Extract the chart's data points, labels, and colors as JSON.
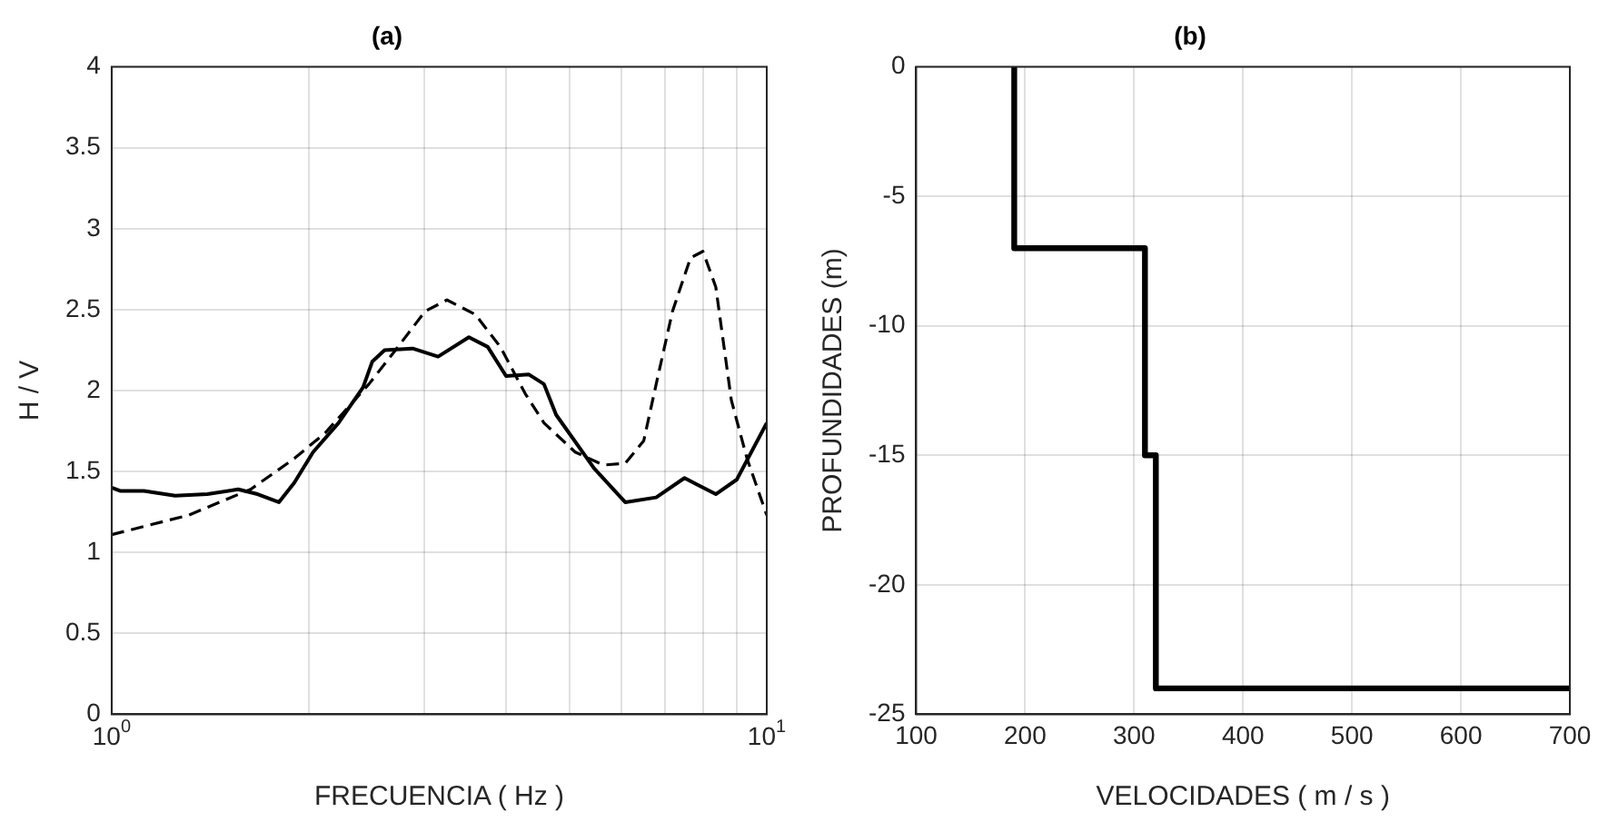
{
  "chart_data": [
    {
      "type": "line",
      "title": "(a)",
      "xlabel": "FRECUENCIA ( Hz )",
      "ylabel": "H / V",
      "log": "x",
      "grid": true,
      "marker": "none",
      "xlim": [
        1,
        10
      ],
      "xticks": [
        {
          "value": 1,
          "label": "10$^{0}$"
        },
        {
          "value": 2,
          "label": null
        },
        {
          "value": 3,
          "label": null
        },
        {
          "value": 4,
          "label": null
        },
        {
          "value": 5,
          "label": null
        },
        {
          "value": 6,
          "label": null
        },
        {
          "value": 7,
          "label": null
        },
        {
          "value": 8,
          "label": null
        },
        {
          "value": 9,
          "label": null
        },
        {
          "value": 10,
          "label": "10$^{1}$"
        }
      ],
      "ylim": [
        0,
        4
      ],
      "yticks": [
        0,
        0.5,
        1,
        1.5,
        2,
        2.5,
        3,
        3.5,
        4
      ],
      "series": [
        {
          "color": "#000000",
          "line_style": "solid",
          "x": [
            1,
            1.03,
            1.12,
            1.25,
            1.4,
            1.56,
            1.67,
            1.8,
            1.9,
            2.03,
            2.22,
            2.42,
            2.5,
            2.61,
            2.88,
            3.15,
            3.51,
            3.75,
            4.0,
            4.33,
            4.57,
            4.77,
            5.45,
            6.08,
            6.78,
            7.49,
            8.36,
            9.0,
            10
          ],
          "values": [
            1.4,
            1.38,
            1.38,
            1.35,
            1.36,
            1.39,
            1.36,
            1.31,
            1.43,
            1.62,
            1.8,
            2.02,
            2.18,
            2.25,
            2.26,
            2.21,
            2.33,
            2.27,
            2.09,
            2.1,
            2.04,
            1.85,
            1.52,
            1.31,
            1.34,
            1.46,
            1.36,
            1.45,
            1.8
          ]
        },
        {
          "color": "#000000",
          "line_style": "dashed",
          "x": [
            1,
            1.31,
            1.63,
            1.9,
            2.12,
            2.47,
            2.7,
            3.01,
            3.25,
            3.59,
            3.92,
            4.28,
            4.57,
            5.1,
            5.63,
            6.08,
            6.49,
            6.78,
            7.18,
            7.65,
            7.99,
            8.36,
            8.83,
            9.33,
            10
          ],
          "values": [
            1.11,
            1.23,
            1.39,
            1.58,
            1.74,
            2.04,
            2.24,
            2.49,
            2.56,
            2.47,
            2.27,
            1.98,
            1.8,
            1.62,
            1.54,
            1.55,
            1.69,
            2.04,
            2.49,
            2.82,
            2.86,
            2.64,
            1.94,
            1.58,
            1.23
          ]
        }
      ]
    },
    {
      "type": "line",
      "title": "(b)",
      "xlabel": "VELOCIDADES ( m / s )",
      "ylabel": "PROFUNDIDADES (m)",
      "grid": true,
      "marker": "none",
      "xlim": [
        100,
        700
      ],
      "xticks": [
        100,
        200,
        300,
        400,
        500,
        600,
        700
      ],
      "ylim": [
        -25,
        0
      ],
      "yticks": [
        -25,
        -20,
        -15,
        -10,
        -5,
        0
      ],
      "series": [
        {
          "color": "#000000",
          "line_style": "solid",
          "x": [
            190,
            190,
            310,
            310,
            320,
            320,
            700
          ],
          "values": [
            0,
            -7,
            -7,
            -15,
            -15,
            -24,
            -24
          ]
        }
      ]
    }
  ]
}
